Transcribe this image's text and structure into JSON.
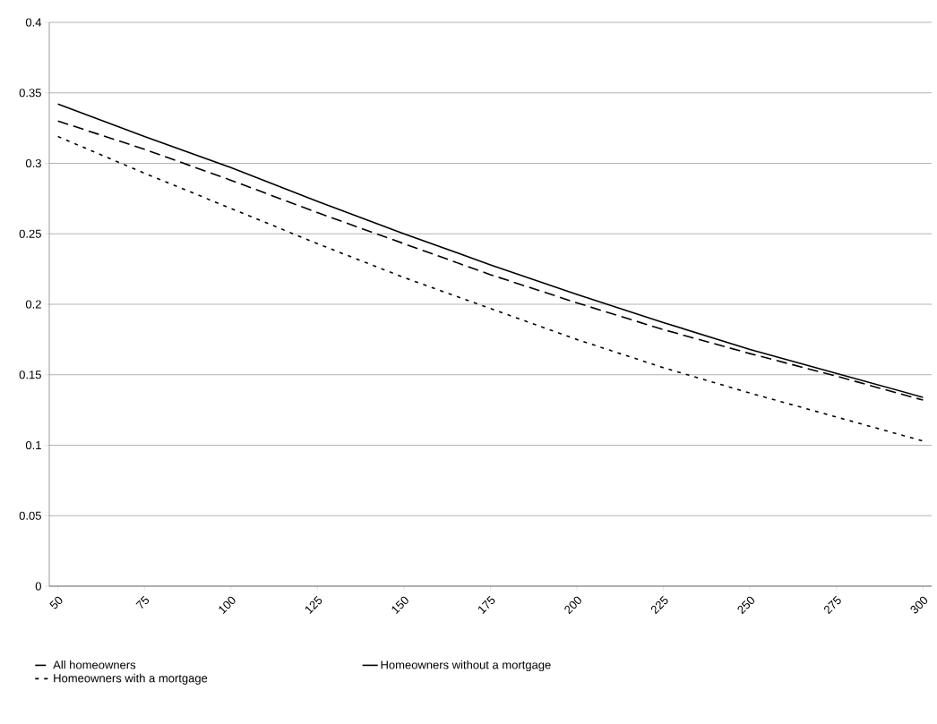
{
  "chart_data": {
    "type": "line",
    "x": [
      50,
      75,
      100,
      125,
      150,
      175,
      200,
      225,
      250,
      275,
      300
    ],
    "series": [
      {
        "name": "All homeowners",
        "color": "#000000",
        "line_style": "dashed",
        "values": [
          0.33,
          0.31,
          0.288,
          0.265,
          0.243,
          0.221,
          0.201,
          0.182,
          0.165,
          0.149,
          0.132
        ]
      },
      {
        "name": "Homeowners without a mortgage",
        "color": "#000000",
        "line_style": "solid",
        "values": [
          0.342,
          0.319,
          0.297,
          0.273,
          0.25,
          0.228,
          0.207,
          0.187,
          0.168,
          0.151,
          0.134
        ]
      },
      {
        "name": "Homeowners with a mortgage",
        "color": "#000000",
        "line_style": "dotted",
        "values": [
          0.319,
          0.293,
          0.268,
          0.243,
          0.219,
          0.197,
          0.175,
          0.155,
          0.137,
          0.12,
          0.103
        ]
      }
    ],
    "xlim": [
      47.5,
      302.5
    ],
    "xticks": [
      50,
      75,
      100,
      125,
      150,
      175,
      200,
      225,
      250,
      275,
      300
    ],
    "ylim": [
      0,
      0.4
    ],
    "yticks": [
      0,
      0.05,
      0.1,
      0.15,
      0.2,
      0.25,
      0.3,
      0.35,
      0.4
    ],
    "grid": "y",
    "legend": "bottom",
    "marker": "none"
  }
}
